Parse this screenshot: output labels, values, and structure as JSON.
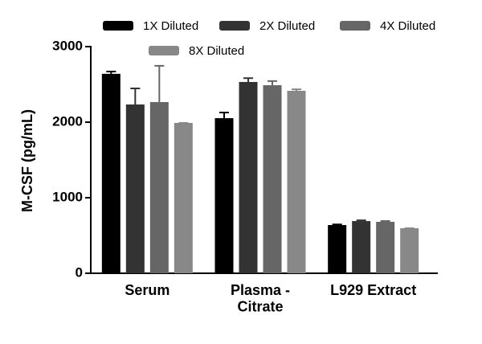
{
  "chart_data": {
    "type": "bar",
    "y_label": "M-CSF (pg/mL)",
    "categories": [
      "Serum",
      "Plasma -\nCitrate",
      "L929 Extract"
    ],
    "series": [
      {
        "name": "1X Diluted",
        "color": "#000000",
        "values": [
          2640,
          2053,
          638
        ],
        "errors": [
          30,
          75,
          8
        ]
      },
      {
        "name": "2X Diluted",
        "color": "#333333",
        "values": [
          2234,
          2532,
          691
        ],
        "errors": [
          213,
          50,
          10
        ]
      },
      {
        "name": "4X Diluted",
        "color": "#666666",
        "values": [
          2266,
          2489,
          681
        ],
        "errors": [
          480,
          55,
          10
        ]
      },
      {
        "name": "8X Diluted",
        "color": "#888888",
        "values": [
          1990,
          2415,
          596
        ],
        "errors": [
          0,
          20,
          0
        ]
      }
    ],
    "ylim": [
      0,
      3000
    ],
    "yticks": [
      0,
      1000,
      2000,
      3000
    ]
  }
}
